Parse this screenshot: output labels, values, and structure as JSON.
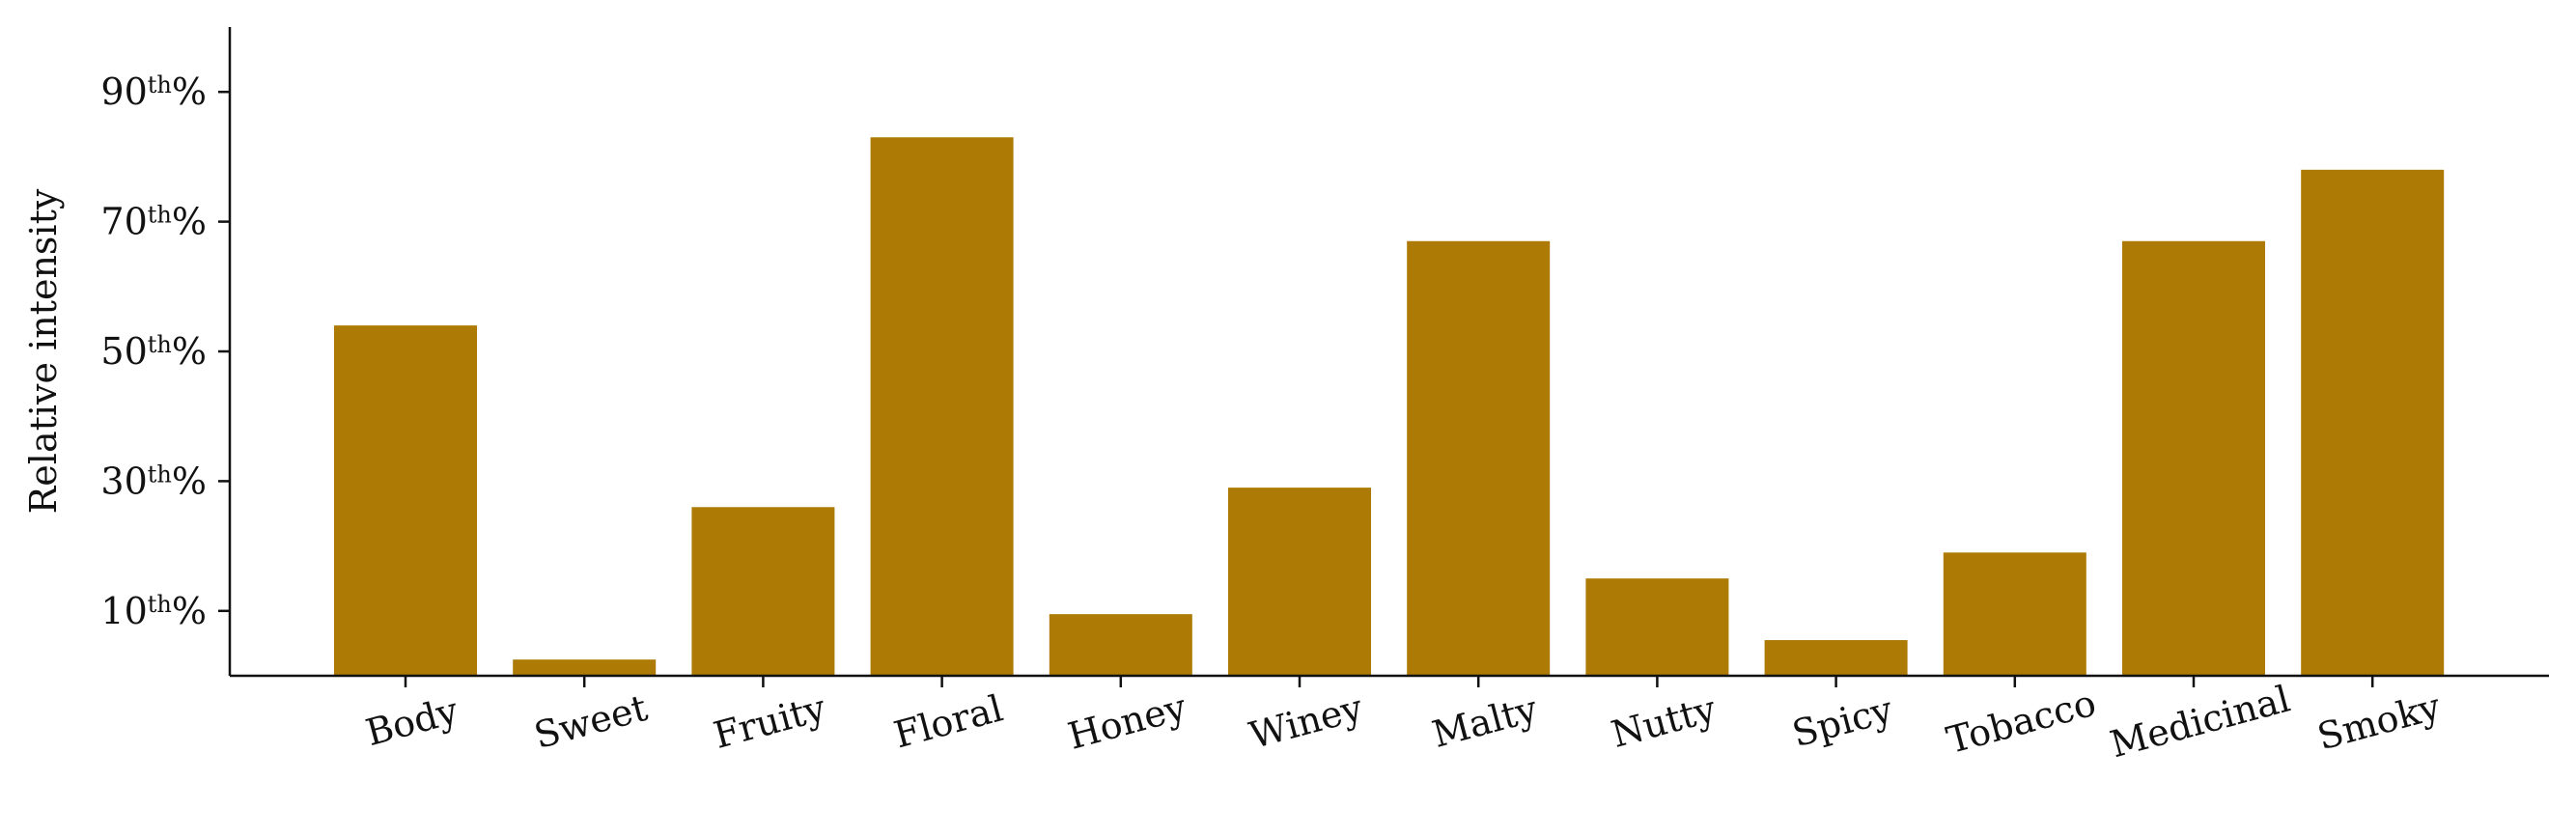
{
  "chart_data": {
    "type": "bar",
    "title": "",
    "xlabel": "",
    "ylabel": "Relative intensity",
    "categories": [
      "Body",
      "Sweet",
      "Fruity",
      "Floral",
      "Honey",
      "Winey",
      "Malty",
      "Nutty",
      "Spicy",
      "Tobacco",
      "Medicinal",
      "Smoky"
    ],
    "values": [
      54,
      2.5,
      26,
      83,
      9.5,
      29,
      67,
      15,
      5.5,
      19,
      67,
      78
    ],
    "ylim": [
      0,
      100
    ],
    "yticks": [
      {
        "value": 10,
        "label": "10th%"
      },
      {
        "value": 30,
        "label": "30th%"
      },
      {
        "value": 50,
        "label": "50th%"
      },
      {
        "value": 70,
        "label": "70th%"
      },
      {
        "value": 90,
        "label": "90th%"
      }
    ],
    "bar_color": "#ad7b05",
    "grid": false,
    "legend": "none"
  }
}
